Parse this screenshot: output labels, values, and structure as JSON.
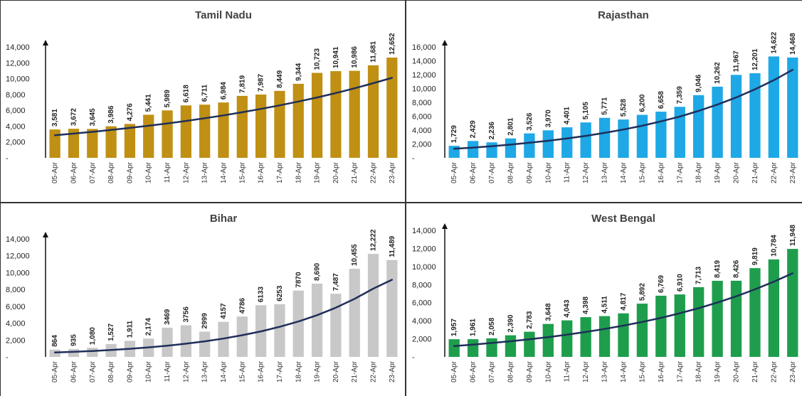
{
  "colors": {
    "trend": "#1f2f5a",
    "axis": "#111111",
    "border": "#555555"
  },
  "dates": [
    "05-Apr",
    "06-Apr",
    "07-Apr",
    "08-Apr",
    "09-Apr",
    "10-Apr",
    "11-Apr",
    "12-Apr",
    "13-Apr",
    "14-Apr",
    "15-Apr",
    "16-Apr",
    "17-Apr",
    "18-Apr",
    "19-Apr",
    "20-Apr",
    "21-Apr",
    "22-Apr",
    "23-Apr"
  ],
  "chart_data": [
    {
      "type": "bar",
      "title": "Tamil Nadu",
      "bar_color": "#bf9013",
      "categories": [
        "05-Apr",
        "06-Apr",
        "07-Apr",
        "08-Apr",
        "09-Apr",
        "10-Apr",
        "11-Apr",
        "12-Apr",
        "13-Apr",
        "14-Apr",
        "15-Apr",
        "16-Apr",
        "17-Apr",
        "18-Apr",
        "19-Apr",
        "20-Apr",
        "21-Apr",
        "22-Apr",
        "23-Apr"
      ],
      "values": [
        3581,
        3672,
        3645,
        3986,
        4276,
        5441,
        5989,
        6618,
        6711,
        6984,
        7819,
        7987,
        8449,
        9344,
        10723,
        10941,
        10986,
        11681,
        12652
      ],
      "data_labels": [
        "3,581",
        "3,672",
        "3,645",
        "3,986",
        "4,276",
        "5,441",
        "5,989",
        "6,618",
        "6,711",
        "6,984",
        "7,819",
        "7,987",
        "8,449",
        "9,344",
        "10,723",
        "10,941",
        "10,986",
        "11,681",
        "12,652"
      ],
      "ylim": [
        0,
        14000
      ],
      "yticks": [
        0,
        2000,
        4000,
        6000,
        8000,
        10000,
        12000,
        14000
      ],
      "ytick_labels": [
        "-",
        "2,000",
        "4,000",
        "6,000",
        "8,000",
        "10,000",
        "12,000",
        "14,000"
      ],
      "trend": [
        2850,
        3060,
        3280,
        3520,
        3780,
        4050,
        4340,
        4660,
        5000,
        5360,
        5750,
        6170,
        6620,
        7110,
        7620,
        8180,
        8780,
        9420,
        10100
      ]
    },
    {
      "type": "bar",
      "title": "Rajasthan",
      "bar_color": "#1ea8e6",
      "categories": [
        "05-Apr",
        "06-Apr",
        "07-Apr",
        "08-Apr",
        "09-Apr",
        "10-Apr",
        "11-Apr",
        "12-Apr",
        "13-Apr",
        "14-Apr",
        "15-Apr",
        "16-Apr",
        "17-Apr",
        "18-Apr",
        "19-Apr",
        "20-Apr",
        "21-Apr",
        "22-Apr",
        "23-Apr"
      ],
      "values": [
        1729,
        2429,
        2236,
        2801,
        3526,
        3970,
        4401,
        5105,
        5771,
        5528,
        6200,
        6658,
        7359,
        9046,
        10262,
        11967,
        12201,
        14622,
        14468
      ],
      "data_labels": [
        "1,729",
        "2,429",
        "2,236",
        "2,801",
        "3,526",
        "3,970",
        "4,401",
        "5,105",
        "5,771",
        "5,528",
        "6,200",
        "6,658",
        "7,359",
        "9,046",
        "10,262",
        "11,967",
        "12,201",
        "14,622",
        "14,468"
      ],
      "ylim": [
        0,
        16000
      ],
      "yticks": [
        0,
        2000,
        4000,
        6000,
        8000,
        10000,
        12000,
        14000,
        16000
      ],
      "ytick_labels": [
        "-",
        "2,000",
        "4,000",
        "6,000",
        "8,000",
        "10,000",
        "12,000",
        "14,000",
        "16,000"
      ],
      "trend": [
        1300,
        1480,
        1680,
        1910,
        2170,
        2460,
        2790,
        3170,
        3600,
        4080,
        4630,
        5260,
        5960,
        6770,
        7680,
        8710,
        9890,
        11200,
        12700
      ]
    },
    {
      "type": "bar",
      "title": "Bihar",
      "bar_color": "#c8c8c8",
      "categories": [
        "05-Apr",
        "06-Apr",
        "07-Apr",
        "08-Apr",
        "09-Apr",
        "10-Apr",
        "11-Apr",
        "12-Apr",
        "13-Apr",
        "14-Apr",
        "15-Apr",
        "16-Apr",
        "17-Apr",
        "18-Apr",
        "19-Apr",
        "20-Apr",
        "21-Apr",
        "22-Apr",
        "23-Apr"
      ],
      "values": [
        864,
        935,
        1080,
        1527,
        1911,
        2174,
        3469,
        3756,
        2999,
        4157,
        4786,
        6133,
        6253,
        7870,
        8690,
        7487,
        10455,
        12222,
        11489
      ],
      "data_labels": [
        "864",
        "935",
        "1,080",
        "1,527",
        "1,911",
        "2,174",
        "3469",
        "3756",
        "2999",
        "4157",
        "4786",
        "6133",
        "6253",
        "7870",
        "8,690",
        "7,487",
        "10,455",
        "12,222",
        "11,489"
      ],
      "ylim": [
        0,
        14000
      ],
      "yticks": [
        0,
        2000,
        4000,
        6000,
        8000,
        10000,
        12000,
        14000
      ],
      "ytick_labels": [
        "-",
        "2,000",
        "4,000",
        "6,000",
        "8,000",
        "10,000",
        "12,000",
        "14,000"
      ],
      "trend": [
        520,
        600,
        700,
        820,
        960,
        1130,
        1330,
        1570,
        1850,
        2180,
        2570,
        3030,
        3570,
        4200,
        4950,
        5840,
        6880,
        8100,
        9150
      ]
    },
    {
      "type": "bar",
      "title": "West Bengal",
      "bar_color": "#1e9e4c",
      "categories": [
        "05-Apr",
        "06-Apr",
        "07-Apr",
        "08-Apr",
        "09-Apr",
        "10-Apr",
        "11-Apr",
        "12-Apr",
        "13-Apr",
        "14-Apr",
        "15-Apr",
        "16-Apr",
        "17-Apr",
        "18-Apr",
        "19-Apr",
        "20-Apr",
        "21-Apr",
        "22-Apr",
        "23-Apr"
      ],
      "values": [
        1957,
        1961,
        2058,
        2390,
        2783,
        3648,
        4043,
        4398,
        4511,
        4817,
        5892,
        6769,
        6910,
        7713,
        8419,
        8426,
        9819,
        10784,
        11948
      ],
      "data_labels": [
        "1,957",
        "1,961",
        "2,058",
        "2,390",
        "2,783",
        "3,648",
        "4,043",
        "4,398",
        "4,511",
        "4,817",
        "5,892",
        "6,769",
        "6,910",
        "7,713",
        "8,419",
        "8,426",
        "9,819",
        "10,784",
        "11,948"
      ],
      "ylim": [
        0,
        14000
      ],
      "yticks": [
        0,
        2000,
        4000,
        6000,
        8000,
        10000,
        12000,
        14000
      ],
      "ytick_labels": [
        "-",
        "2,000",
        "4,000",
        "6,000",
        "8,000",
        "10,000",
        "12,000",
        "14,000"
      ],
      "trend": [
        1200,
        1360,
        1540,
        1730,
        1950,
        2190,
        2460,
        2760,
        3090,
        3460,
        3870,
        4320,
        4830,
        5390,
        6010,
        6700,
        7470,
        8320,
        9250
      ]
    }
  ]
}
